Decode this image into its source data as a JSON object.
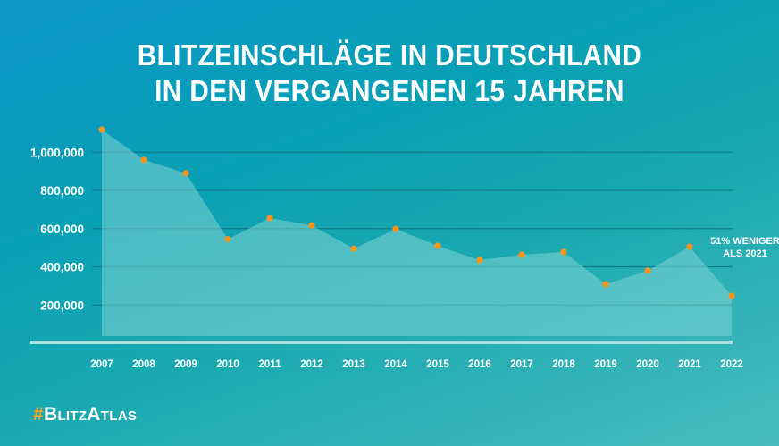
{
  "title": {
    "line1": "BLITZEINSCHLÄGE IN DEUTSCHLAND",
    "line2": "IN DEN VERGANGENEN 15 JAHREN"
  },
  "brand": {
    "hash": "#",
    "name": "BlitzAtlas",
    "hash_color": "#f4a623"
  },
  "chart_data": {
    "type": "area",
    "title": "BLITZEINSCHLÄGE IN DEUTSCHLAND IN DEN VERGANGENEN 15 JAHREN",
    "xlabel": "",
    "ylabel": "",
    "categories": [
      "2007",
      "2008",
      "2009",
      "2010",
      "2011",
      "2012",
      "2013",
      "2014",
      "2015",
      "2016",
      "2017",
      "2018",
      "2019",
      "2020",
      "2021",
      "2022"
    ],
    "values": [
      1118000,
      960000,
      890000,
      545000,
      655000,
      617000,
      495000,
      598000,
      510000,
      435000,
      463000,
      477000,
      309000,
      379000,
      505000,
      248000
    ],
    "ylim": [
      0,
      1100000
    ],
    "yticks": [
      200000,
      400000,
      600000,
      800000,
      1000000
    ],
    "ytick_labels": [
      "200,000",
      "400,000",
      "600,000",
      "800,000",
      "1,000,000"
    ],
    "grid": true,
    "legend": "none",
    "annotation": {
      "category": "2021",
      "line1": "51% WENIGER",
      "line2": "ALS 2021"
    },
    "colors": {
      "area_fill": "#7fd3d3",
      "point": "#f7941d",
      "grid": "#0a6e78",
      "axis": "#a8e2e2"
    }
  }
}
